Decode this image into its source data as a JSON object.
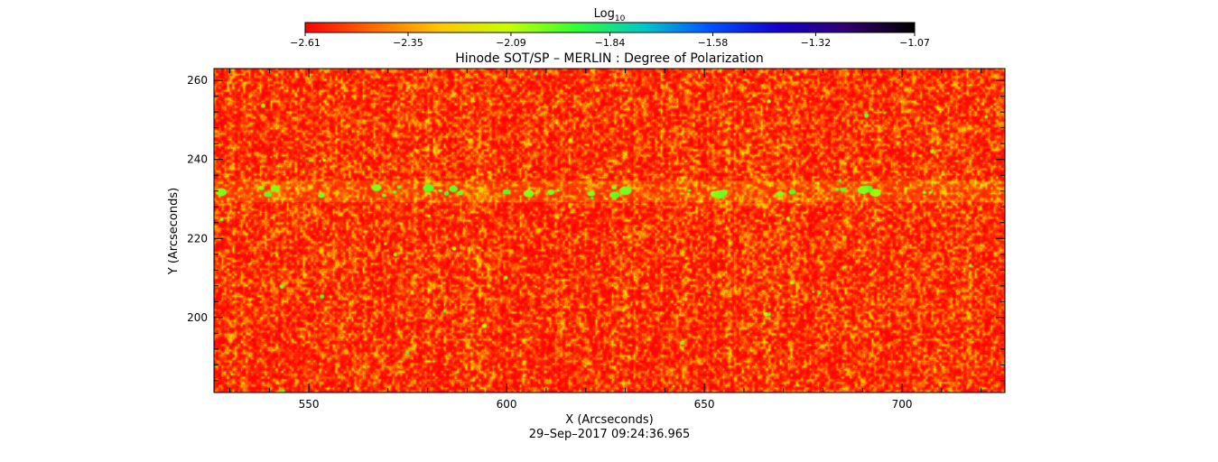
{
  "chart_data": {
    "type": "heatmap",
    "title": "Hinode SOT/SP – MERLIN : Degree of Polarization",
    "xlabel": "X (Arcseconds)",
    "ylabel": "Y (Arcseconds)",
    "footer": "29–Sep–2017 09:24:36.965",
    "xlim": [
      526,
      726
    ],
    "ylim": [
      181,
      263
    ],
    "x_ticks": [
      550,
      600,
      650,
      700
    ],
    "x_tick_labels": [
      "550",
      "600",
      "650",
      "700"
    ],
    "y_ticks": [
      200,
      220,
      240,
      260
    ],
    "y_tick_labels": [
      "200",
      "220",
      "240",
      "260"
    ],
    "colorbar": {
      "label_base": "Log",
      "label_sub": "10",
      "range": [
        -2.61,
        -1.07
      ],
      "ticks": [
        -2.61,
        -2.35,
        -2.09,
        -1.84,
        -1.58,
        -1.32,
        -1.07
      ],
      "tick_labels": [
        "−2.61",
        "−2.35",
        "−2.09",
        "−1.84",
        "−1.58",
        "−1.32",
        "−1.07"
      ],
      "colormap": [
        "#ff0000",
        "#ff6a00",
        "#ffc800",
        "#c8ff00",
        "#32ff32",
        "#00c8c8",
        "#0050ff",
        "#1400c8",
        "#32006e",
        "#000000"
      ]
    },
    "field": {
      "dominant_range": [
        -2.61,
        -2.25
      ],
      "patches_near_y": 232,
      "patch_value": -2.0
    }
  }
}
